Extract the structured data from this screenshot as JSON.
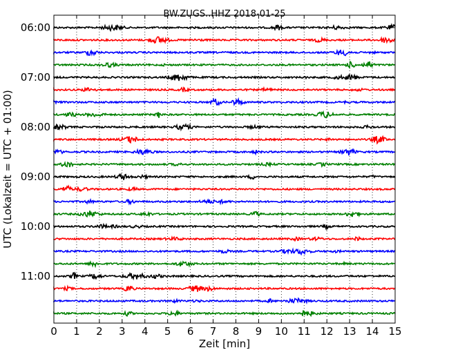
{
  "chart_data": {
    "type": "line",
    "title": "BW.ZUGS..HHZ 2018-01-25",
    "xlabel": "Zeit  [min]",
    "ylabel": "UTC (Lokalzeit = UTC + 01:00)",
    "xlim": [
      0,
      15
    ],
    "x_ticks": [
      "0",
      "1",
      "2",
      "3",
      "4",
      "5",
      "6",
      "7",
      "8",
      "9",
      "10",
      "11",
      "12",
      "13",
      "14",
      "15"
    ],
    "y_ticks": [
      "06:00",
      "07:00",
      "08:00",
      "09:00",
      "10:00",
      "11:00"
    ],
    "grid": "vertical dotted",
    "trace_colors": [
      "#000000",
      "#ff0000",
      "#0000ff",
      "#008000"
    ],
    "traces": [
      {
        "start": "06:00",
        "color": "#000000"
      },
      {
        "start": "06:15",
        "color": "#ff0000"
      },
      {
        "start": "06:30",
        "color": "#0000ff"
      },
      {
        "start": "06:45",
        "color": "#008000"
      },
      {
        "start": "07:00",
        "color": "#000000"
      },
      {
        "start": "07:15",
        "color": "#ff0000"
      },
      {
        "start": "07:30",
        "color": "#0000ff"
      },
      {
        "start": "07:45",
        "color": "#008000"
      },
      {
        "start": "08:00",
        "color": "#000000"
      },
      {
        "start": "08:15",
        "color": "#ff0000"
      },
      {
        "start": "08:30",
        "color": "#0000ff"
      },
      {
        "start": "08:45",
        "color": "#008000"
      },
      {
        "start": "09:00",
        "color": "#000000"
      },
      {
        "start": "09:15",
        "color": "#ff0000"
      },
      {
        "start": "09:30",
        "color": "#0000ff"
      },
      {
        "start": "09:45",
        "color": "#008000"
      },
      {
        "start": "10:00",
        "color": "#000000"
      },
      {
        "start": "10:15",
        "color": "#ff0000"
      },
      {
        "start": "10:30",
        "color": "#0000ff"
      },
      {
        "start": "10:45",
        "color": "#008000"
      },
      {
        "start": "11:00",
        "color": "#000000"
      },
      {
        "start": "11:15",
        "color": "#ff0000"
      },
      {
        "start": "11:30",
        "color": "#0000ff"
      },
      {
        "start": "11:45",
        "color": "#008000"
      }
    ]
  }
}
